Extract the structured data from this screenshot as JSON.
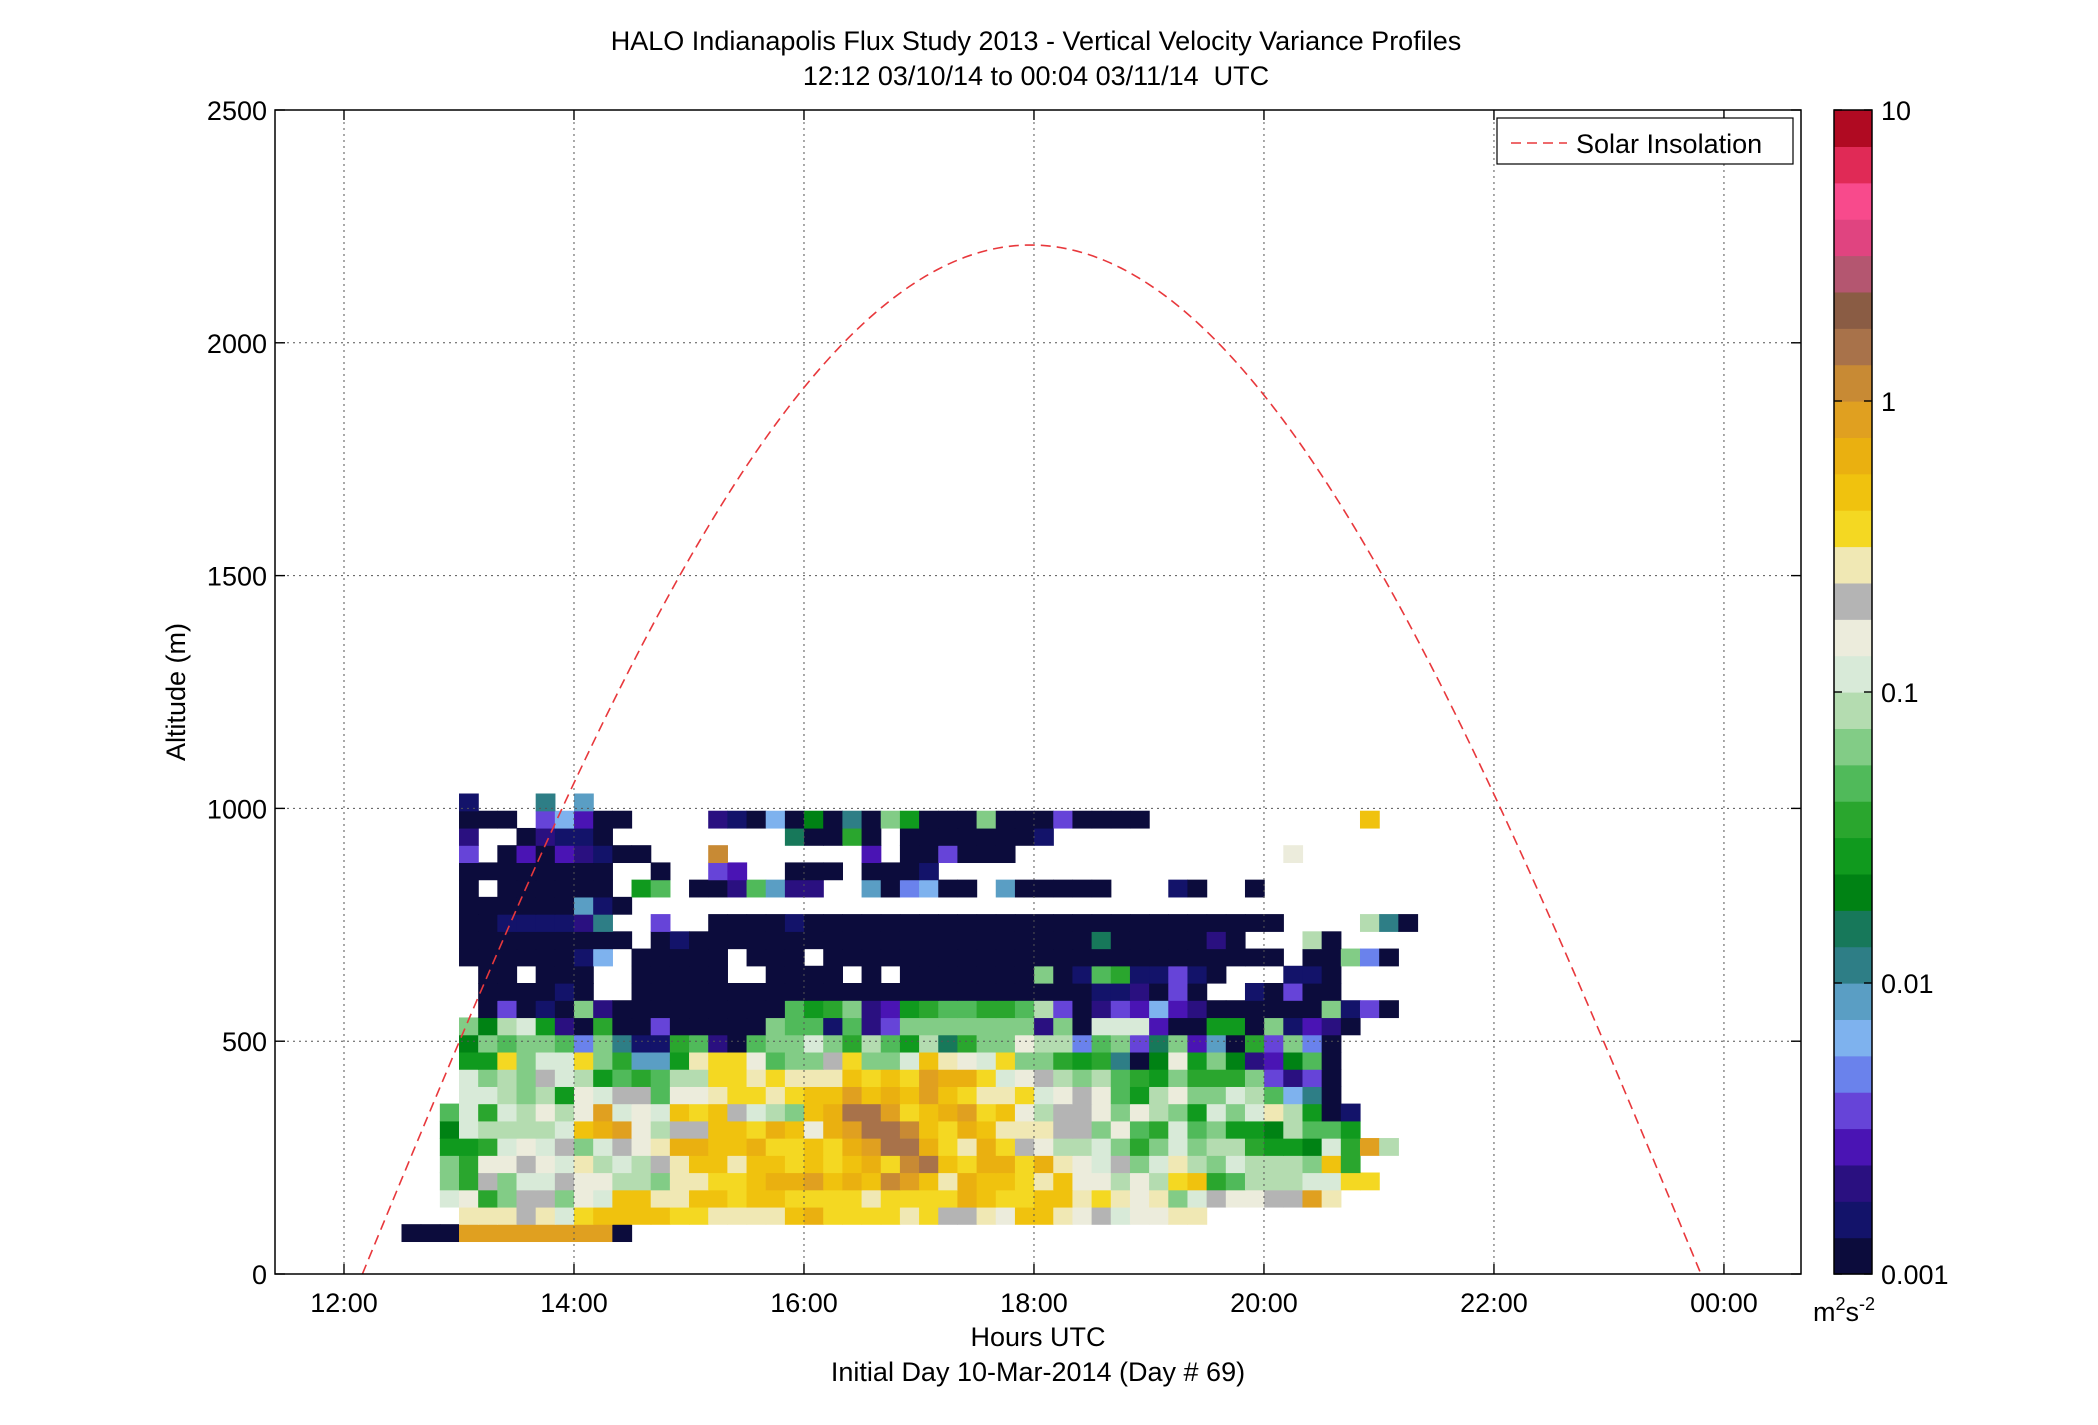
{
  "chart_data": {
    "type": "heatmap",
    "title": "HALO Indianapolis Flux Study 2013 - Vertical Velocity Variance Profiles",
    "subtitle": "12:12 03/10/14 to 00:04 03/11/14  UTC",
    "xlabel": "Hours UTC",
    "xlabel2": "Initial Day 10-Mar-2014 (Day # 69)",
    "ylabel": "Altitude (m)",
    "colorbar_unit": "m²s⁻²",
    "colorbar_unit_base": "m",
    "colorbar_unit_exp1": "2",
    "colorbar_unit_mid": "s",
    "colorbar_unit_exp2": "-2",
    "grid": true,
    "xlim": [
      11.4,
      24.67
    ],
    "ylim": [
      0,
      2500
    ],
    "xtick_values": [
      12,
      14,
      16,
      18,
      20,
      22,
      24
    ],
    "xtick_labels": [
      "12:00",
      "14:00",
      "16:00",
      "18:00",
      "20:00",
      "22:00",
      "00:00"
    ],
    "ytick_values": [
      0,
      500,
      1000,
      1500,
      2000,
      2500
    ],
    "ytick_labels": [
      "0",
      "500",
      "1000",
      "1500",
      "2000",
      "2500"
    ],
    "colorbar_scale": "log",
    "colorbar_range": [
      0.001,
      10
    ],
    "colorbar_tick_values": [
      0.001,
      0.01,
      0.1,
      1,
      10
    ],
    "colorbar_tick_labels": [
      "0.001",
      "0.01",
      "0.1",
      "1",
      "10"
    ],
    "colormap": [
      "#0c0c3c",
      "#13136a",
      "#2a1080",
      "#4a14b4",
      "#6644d8",
      "#6a82ec",
      "#7eb2ee",
      "#5a9ec4",
      "#2e7e86",
      "#17785a",
      "#008214",
      "#109a1e",
      "#2aa62e",
      "#50ba5a",
      "#82cc86",
      "#b4dcb0",
      "#d8ead8",
      "#ececdc",
      "#b4b4b4",
      "#f0e8b4",
      "#f4d822",
      "#f0c20e",
      "#eab010",
      "#e0a020",
      "#c88a34",
      "#a8724a",
      "#8a5c44",
      "#b45670",
      "#e04480",
      "#f84a8c",
      "#e02a56",
      "#b00a22"
    ],
    "legend_label": "Solar Insolation",
    "legend_color": "#e8383c",
    "legend_placement": "top-right",
    "solar_insolation_peak_hour": 17.97,
    "solar_insolation_peak_altitude": 2210,
    "solar_insolation_zero_hours": [
      12.16,
      23.8
    ],
    "time_bin_hours": 0.1667,
    "altitude_bin_m": 37,
    "x_start_hour": 12.5,
    "altitude_start_m": 70,
    "grid_rows_bottom_to_top": [
      "AAAXXXXXXXXA................................................................................",
      "...TTTSTQUVVVVUUTTTTVWUUUUTUSSTRVVTRSQRRTT............",
      "..QRMOSSORQVVTTVVUVVUUUUTUUUUWVUUVVTUTRTOQSRRSSXT",
      "..OMSOQQSRRPPOTTUUVWWXVWVYXVTWVVUTVRRPRPUVMNPPPQQUU",
      "..OMRRSRQTPQPSTVVTVVUVUVWUYZVUWWUWTRQSOQTPOQPPPOVM",
      "..LLMQRQSOQSRTWWVVWUUVUWXZZWUTWUSRPPQOMOQOPPMLLKQMXP",
      "..KQPPPPQVWXRPSSVVUWVRWXZZYVUWVTTTSSORNMQNOLLKPNNL",
      "..NQMQPRPRXQRQVUVSQPOVWZZXUVWXUVRPSSRORPOLQOQTPLAB",
      "...QQPOPLRQSSNRRTUUTUVVXVWVXVUTTUQRSRNLPROOQPNGIA",
      "...QOPOSQPLNMNPPUUTUTTTVUVUXWWUQRSPOPNMLOMMMOECEA",
      "...LLUOQQUOMHHLTUURNOOSUOOQVTRQUOOMLMIAKRLOKCDKNA",
      "...KONOONFOIBBMNCANOOQOMPNLPJMOORPPFNOEJODHAMEOFA",
      "...OKPQLCAMAAEAAAAAONNBNCEOOOOOOOCOAQQQDAALLAOBDCA",
      "....AEABAOCAAAAAAAAANLMOCDLMNNMMNPEACEDGDCAAAAAAOBEA",
      "....AAAABA..AAAAAAAAAAAAAAAAAAAAAAAABBCAEA..BAEAA",
      "....AA.AAA..AAAAA..AAAA.A.AAAAAAAOABNMBBEBA...BBA",
      "...AAAAAABG.AAAAA.AAA.AAAAAAAAAAAAAAAAAAAAAAAA.AAOFA",
      "...AAAAAAAAA.ABAAAAAAAAAAAAAAAAAAAAAJAAAAACA...PA",
      "...AABBBBCI..E..AAAABAAAAAAAAAAAAAAAAAAAAAAAAA....PIA",
      "...AAAAAAHBA.............................................",
      "...A.AAAAAA.LN.AACNHCC..HAFGAA.HAAAAA...BA..A",
      "...AAAAAAAA..A..ED..AAA.AAAB..",
      "...E.ADADCBAA...Y.......D.AAEAAA..............R",
      "...C..ACBBA.........JAAMA.AAAAAAAB....",
      "...AAA.EGDAA....CBAGAKAIAOLAAAOAAAEAAAA...........V",
      "...B...I.H.........................."
    ]
  }
}
